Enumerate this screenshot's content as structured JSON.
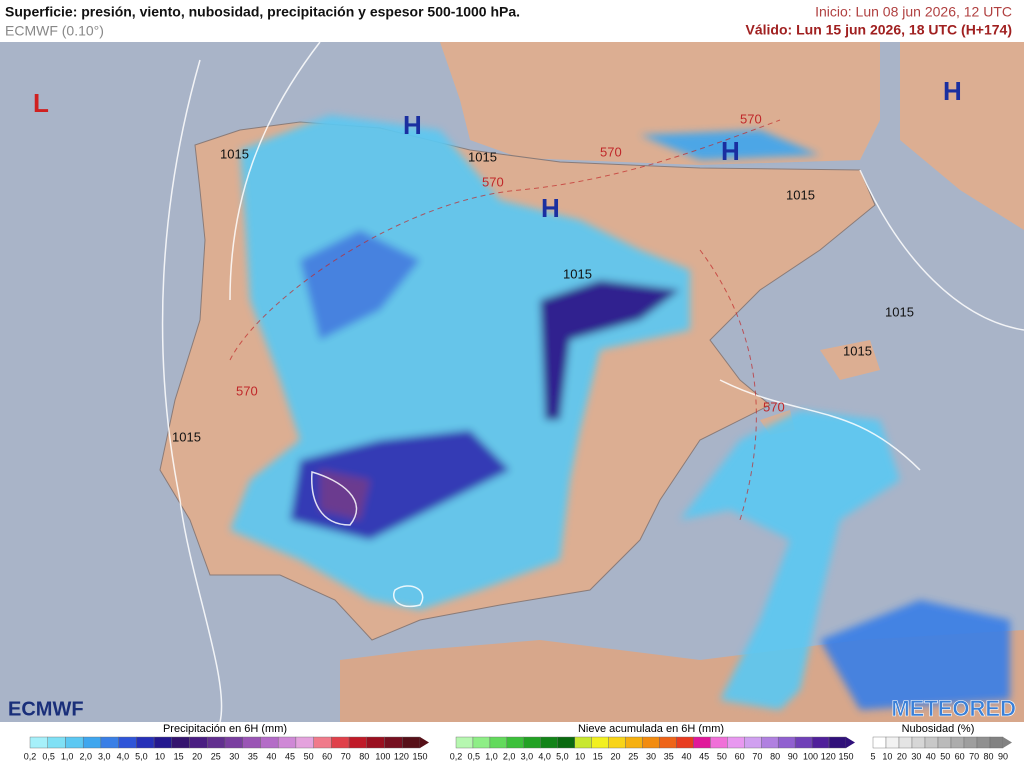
{
  "header": {
    "title": "Superficie: presión, viento, nubosidad, precipitación y espesor 500-1000 hPa.",
    "model": "ECMWF (0.10°)",
    "init": "Inicio: Lun 08 jun 2026, 12 UTC",
    "valid": "Válido: Lun 15 jun 2026, 18 UTC (H+174)"
  },
  "map_labels": {
    "low": "L",
    "high": "H",
    "isobar": "1015",
    "thickness": "570"
  },
  "logos": {
    "left": "ECMWF",
    "right": "METEORED"
  },
  "legends": [
    {
      "title": "Precipitación en 6H (mm)",
      "labels": [
        "0,2",
        "0,5",
        "1,0",
        "2,0",
        "3,0",
        "4,0",
        "5,0",
        "10",
        "15",
        "20",
        "25",
        "30",
        "35",
        "40",
        "45",
        "50",
        "60",
        "70",
        "80",
        "100",
        "120",
        "150"
      ],
      "colors": [
        "#a6f0fa",
        "#7fe0f5",
        "#5cc8f2",
        "#3fa6ee",
        "#3a7fe6",
        "#2f55d8",
        "#2630b8",
        "#24188f",
        "#34146e",
        "#4a1e82",
        "#62308f",
        "#7a3fa0",
        "#9a55b5",
        "#b46cc7",
        "#cf88d6",
        "#e4a2dd",
        "#f07a8a",
        "#e0404a",
        "#c01a28",
        "#9a1020",
        "#761020",
        "#561018"
      ]
    },
    {
      "title": "Nieve acumulada en 6H (mm)",
      "labels": [
        "0,2",
        "0,5",
        "1,0",
        "2,0",
        "3,0",
        "4,0",
        "5,0",
        "10",
        "15",
        "20",
        "25",
        "30",
        "35",
        "40",
        "45",
        "50",
        "60",
        "70",
        "80",
        "90",
        "100",
        "120",
        "150"
      ],
      "colors": [
        "#b6f7b0",
        "#8eee86",
        "#63da5c",
        "#3cc03a",
        "#22a224",
        "#128418",
        "#0a6a10",
        "#c8e830",
        "#f2f020",
        "#f8d418",
        "#f6b010",
        "#f28c10",
        "#ee6418",
        "#e83c20",
        "#e0189a",
        "#f070d8",
        "#e898f0",
        "#d0a0f0",
        "#b080e0",
        "#9060d0",
        "#7040b8",
        "#50209a",
        "#30107a"
      ]
    },
    {
      "title": "Nubosidad (%)",
      "labels": [
        "5",
        "10",
        "20",
        "30",
        "40",
        "50",
        "60",
        "70",
        "80",
        "90"
      ],
      "colors": [
        "#ffffff",
        "#f2f2f2",
        "#e4e4e4",
        "#d6d6d6",
        "#c8c8c8",
        "#bababa",
        "#acacac",
        "#9e9e9e",
        "#909090",
        "#828282"
      ]
    }
  ]
}
